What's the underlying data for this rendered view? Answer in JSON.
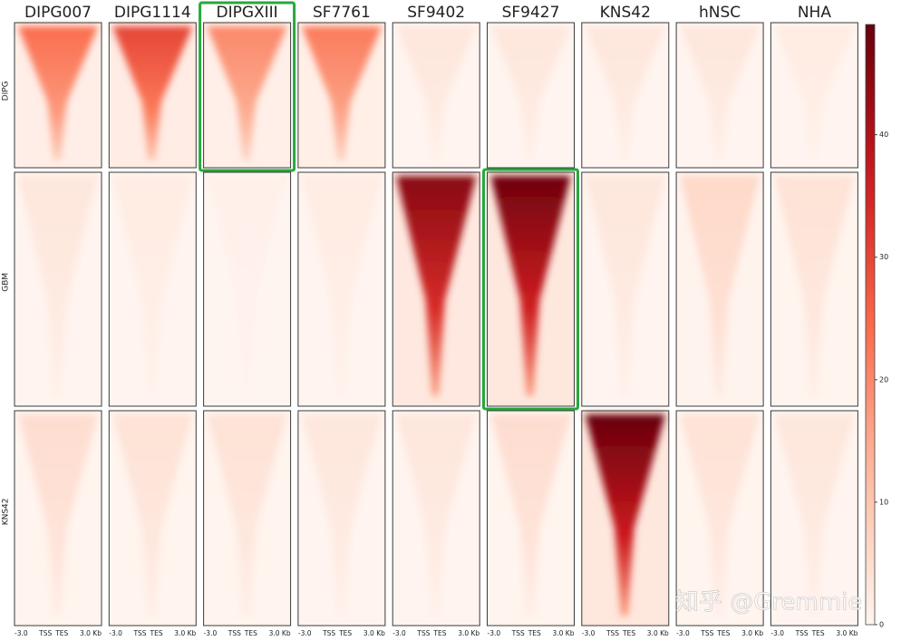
{
  "chart_data": {
    "type": "heatmap",
    "columns": [
      "DIPG007",
      "DIPG1114",
      "DIPGXIII",
      "SF7761",
      "SF9402",
      "SF9427",
      "KNS42",
      "hNSC",
      "NHA"
    ],
    "rows": [
      "DIPG",
      "GBM",
      "KNS42"
    ],
    "values": [
      [
        24,
        30,
        20,
        22,
        3,
        3,
        3,
        3,
        2
      ],
      [
        3,
        2,
        1,
        2,
        45,
        48,
        3,
        6,
        4
      ],
      [
        5,
        4,
        4,
        3,
        3,
        5,
        49,
        4,
        3
      ]
    ],
    "xticks": [
      "-3.0",
      "TSS",
      "TES",
      "3.0 Kb"
    ],
    "colorbar": {
      "lim": [
        0,
        49
      ],
      "ticks": [
        0,
        10,
        20,
        30,
        40
      ]
    },
    "colormap": "Reds",
    "highlighted": [
      [
        0,
        2
      ],
      [
        1,
        5
      ]
    ],
    "highlight_color": "#27a83a"
  },
  "watermark": "知乎 @Gremmie"
}
